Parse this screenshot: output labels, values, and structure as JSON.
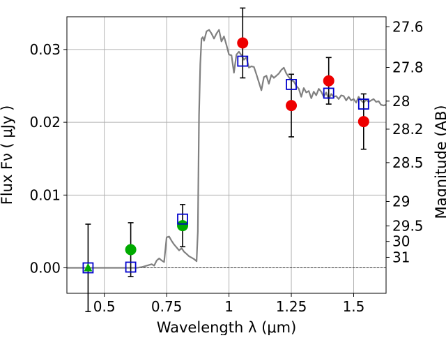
{
  "chart_data": {
    "type": "scatter",
    "title": "",
    "xlabel": "Wavelength  λ (μm)",
    "ylabel": "Flux  Fν  ( μJy )",
    "ylabel_right": "Magnitude (AB)",
    "xlim": [
      0.35,
      1.63
    ],
    "ylim": [
      -0.0035,
      0.0345
    ],
    "grid": true,
    "x_ticks": [
      {
        "value": 0.5,
        "label": "0.5"
      },
      {
        "value": 0.75,
        "label": "0.75"
      },
      {
        "value": 1.0,
        "label": "1"
      },
      {
        "value": 1.25,
        "label": "1.25"
      },
      {
        "value": 1.5,
        "label": "1.5"
      }
    ],
    "y_ticks": [
      {
        "value": 0.0,
        "label": "0.00"
      },
      {
        "value": 0.01,
        "label": "0.01"
      },
      {
        "value": 0.02,
        "label": "0.02"
      },
      {
        "value": 0.03,
        "label": "0.03"
      }
    ],
    "right_ticks": [
      {
        "mag": 27.6,
        "label": "27.6"
      },
      {
        "mag": 27.8,
        "label": "27.8"
      },
      {
        "mag": 28.0,
        "label": "28"
      },
      {
        "mag": 28.2,
        "label": "28.2"
      },
      {
        "mag": 28.5,
        "label": "28.5"
      },
      {
        "mag": 29.0,
        "label": "29"
      },
      {
        "mag": 29.5,
        "label": "29.5"
      },
      {
        "mag": 30.0,
        "label": "30"
      },
      {
        "mag": 31.0,
        "label": "31"
      }
    ],
    "colors": {
      "model": "#808080",
      "observed_red": "#ee0000",
      "observed_green": "#00aa00",
      "model_box": "#0000cc",
      "errorbar": "#000000",
      "grid": "#b0b0b0"
    },
    "model_spectrum": {
      "x": [
        0.35,
        0.4,
        0.45,
        0.5,
        0.55,
        0.6,
        0.63,
        0.65,
        0.67,
        0.69,
        0.7,
        0.71,
        0.72,
        0.73,
        0.74,
        0.75,
        0.76,
        0.77,
        0.78,
        0.79,
        0.8,
        0.81,
        0.82,
        0.83,
        0.84,
        0.85,
        0.86,
        0.87,
        0.875,
        0.88,
        0.885,
        0.89,
        0.895,
        0.9,
        0.91,
        0.92,
        0.93,
        0.94,
        0.95,
        0.96,
        0.97,
        0.98,
        0.99,
        1.0,
        1.01,
        1.02,
        1.03,
        1.04,
        1.05,
        1.06,
        1.07,
        1.08,
        1.09,
        1.1,
        1.11,
        1.12,
        1.13,
        1.14,
        1.15,
        1.16,
        1.17,
        1.18,
        1.19,
        1.2,
        1.21,
        1.22,
        1.23,
        1.24,
        1.25,
        1.26,
        1.27,
        1.28,
        1.29,
        1.3,
        1.31,
        1.32,
        1.33,
        1.34,
        1.35,
        1.36,
        1.37,
        1.38,
        1.39,
        1.4,
        1.41,
        1.42,
        1.43,
        1.44,
        1.45,
        1.46,
        1.47,
        1.48,
        1.49,
        1.5,
        1.51,
        1.52,
        1.53,
        1.54,
        1.55,
        1.56,
        1.57,
        1.58,
        1.59,
        1.6,
        1.61,
        1.62,
        1.63
      ],
      "y": [
        0.0,
        0.0,
        0.0,
        0.0,
        0.0,
        0.0,
        0.0,
        0.0001,
        0.0003,
        0.0005,
        0.0003,
        0.001,
        0.0013,
        0.001,
        0.0008,
        0.0042,
        0.0043,
        0.0037,
        0.0032,
        0.0028,
        0.0024,
        0.0027,
        0.0022,
        0.0019,
        0.0016,
        0.0014,
        0.0012,
        0.0009,
        0.005,
        0.021,
        0.028,
        0.0315,
        0.0317,
        0.0312,
        0.0325,
        0.0327,
        0.0322,
        0.0315,
        0.0322,
        0.0327,
        0.0311,
        0.0318,
        0.0306,
        0.0293,
        0.0292,
        0.0268,
        0.0293,
        0.0297,
        0.0292,
        0.0286,
        0.0289,
        0.0275,
        0.0277,
        0.0276,
        0.0266,
        0.0255,
        0.0244,
        0.0262,
        0.0264,
        0.0253,
        0.0265,
        0.0261,
        0.0264,
        0.0267,
        0.0272,
        0.0275,
        0.0267,
        0.0262,
        0.0258,
        0.0256,
        0.025,
        0.0246,
        0.0235,
        0.0247,
        0.0241,
        0.0243,
        0.0233,
        0.0242,
        0.0237,
        0.0246,
        0.0242,
        0.0235,
        0.0241,
        0.0232,
        0.0239,
        0.0235,
        0.0236,
        0.0232,
        0.0237,
        0.0236,
        0.023,
        0.0235,
        0.023,
        0.0232,
        0.0227,
        0.0235,
        0.023,
        0.0227,
        0.0231,
        0.0228,
        0.023,
        0.0232,
        0.0228,
        0.0229,
        0.0224,
        0.0223,
        0.0224
      ]
    },
    "observed": [
      {
        "x": 0.435,
        "y": 0.0,
        "err": 0.006,
        "color": "green",
        "marker": "triangle"
      },
      {
        "x": 0.606,
        "y": 0.0025,
        "err": 0.0037,
        "color": "green",
        "marker": "circle"
      },
      {
        "x": 0.814,
        "y": 0.0058,
        "err": 0.0029,
        "color": "green",
        "marker": "circle"
      },
      {
        "x": 1.055,
        "y": 0.0309,
        "err": 0.0048,
        "color": "red",
        "marker": "circle"
      },
      {
        "x": 1.25,
        "y": 0.0223,
        "err": 0.0043,
        "color": "red",
        "marker": "circle"
      },
      {
        "x": 1.4,
        "y": 0.0257,
        "err": 0.0032,
        "color": "red",
        "marker": "circle"
      },
      {
        "x": 1.54,
        "y": 0.0201,
        "err": 0.0038,
        "color": "red",
        "marker": "circle"
      }
    ],
    "model_photometry": [
      {
        "x": 0.435,
        "y": 0.0
      },
      {
        "x": 0.606,
        "y": 0.0001
      },
      {
        "x": 0.814,
        "y": 0.0067
      },
      {
        "x": 1.055,
        "y": 0.0284
      },
      {
        "x": 1.25,
        "y": 0.0252
      },
      {
        "x": 1.4,
        "y": 0.024
      },
      {
        "x": 1.54,
        "y": 0.0225
      }
    ]
  }
}
